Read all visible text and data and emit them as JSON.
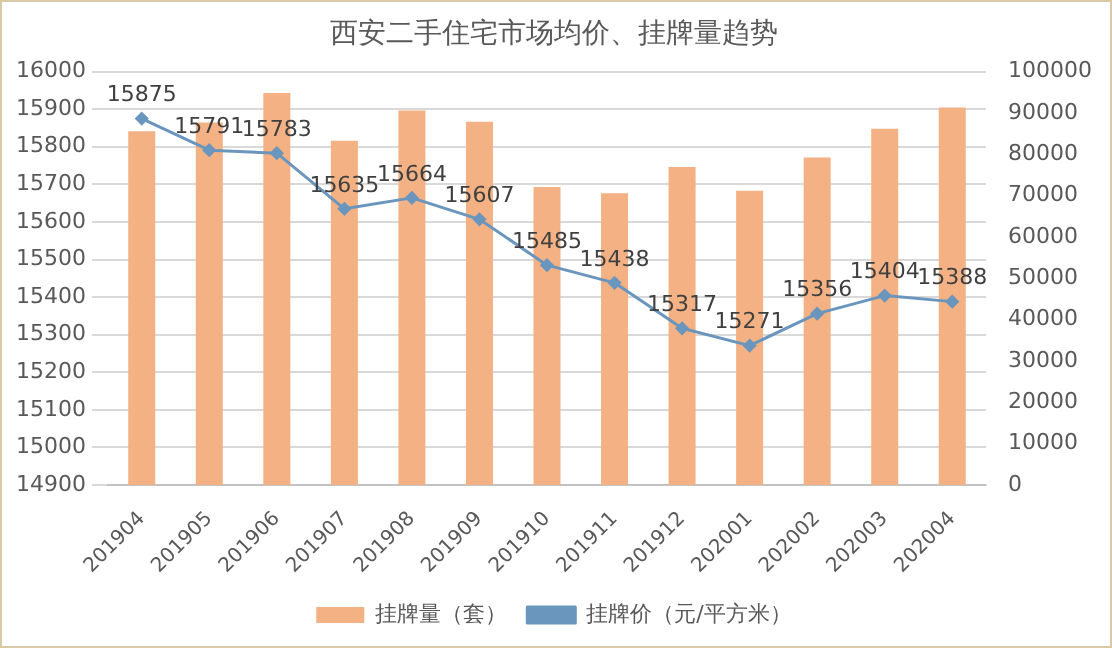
{
  "chart_data": {
    "type": "bar",
    "title": "西安二手住宅市场均价、挂牌量趋势",
    "categories": [
      "201904",
      "201905",
      "201906",
      "201907",
      "201908",
      "201909",
      "201910",
      "201911",
      "201912",
      "202001",
      "202002",
      "202003",
      "202004"
    ],
    "series": [
      {
        "name": "挂牌量（套）",
        "axis": "y2",
        "color": "#f4b183",
        "values": [
          85600,
          87700,
          94800,
          83300,
          90600,
          87900,
          72100,
          70600,
          76900,
          71200,
          79200,
          86200,
          91300
        ]
      },
      {
        "name": "挂牌价（元/平方米）",
        "type": "line",
        "axis": "y",
        "color": "#6a96bd",
        "values": [
          15875,
          15791,
          15783,
          15635,
          15664,
          15607,
          15485,
          15438,
          15317,
          15271,
          15356,
          15404,
          15388
        ],
        "value_labels": [
          "15875",
          "15791",
          "15783",
          "15635",
          "15664",
          "15607",
          "15485",
          "15438",
          "15317",
          "15271",
          "15356",
          "15404",
          "15388"
        ]
      }
    ],
    "ylim": [
      14900,
      16000
    ],
    "yticks": [
      14900,
      15000,
      15100,
      15200,
      15300,
      15400,
      15500,
      15600,
      15700,
      15800,
      15900,
      16000
    ],
    "y2lim": [
      0,
      100000
    ],
    "y2ticks": [
      0,
      10000,
      20000,
      30000,
      40000,
      50000,
      60000,
      70000,
      80000,
      90000,
      100000
    ],
    "grid": "y",
    "legend": "bottom",
    "marker": "diamond",
    "line_style": "solid"
  }
}
